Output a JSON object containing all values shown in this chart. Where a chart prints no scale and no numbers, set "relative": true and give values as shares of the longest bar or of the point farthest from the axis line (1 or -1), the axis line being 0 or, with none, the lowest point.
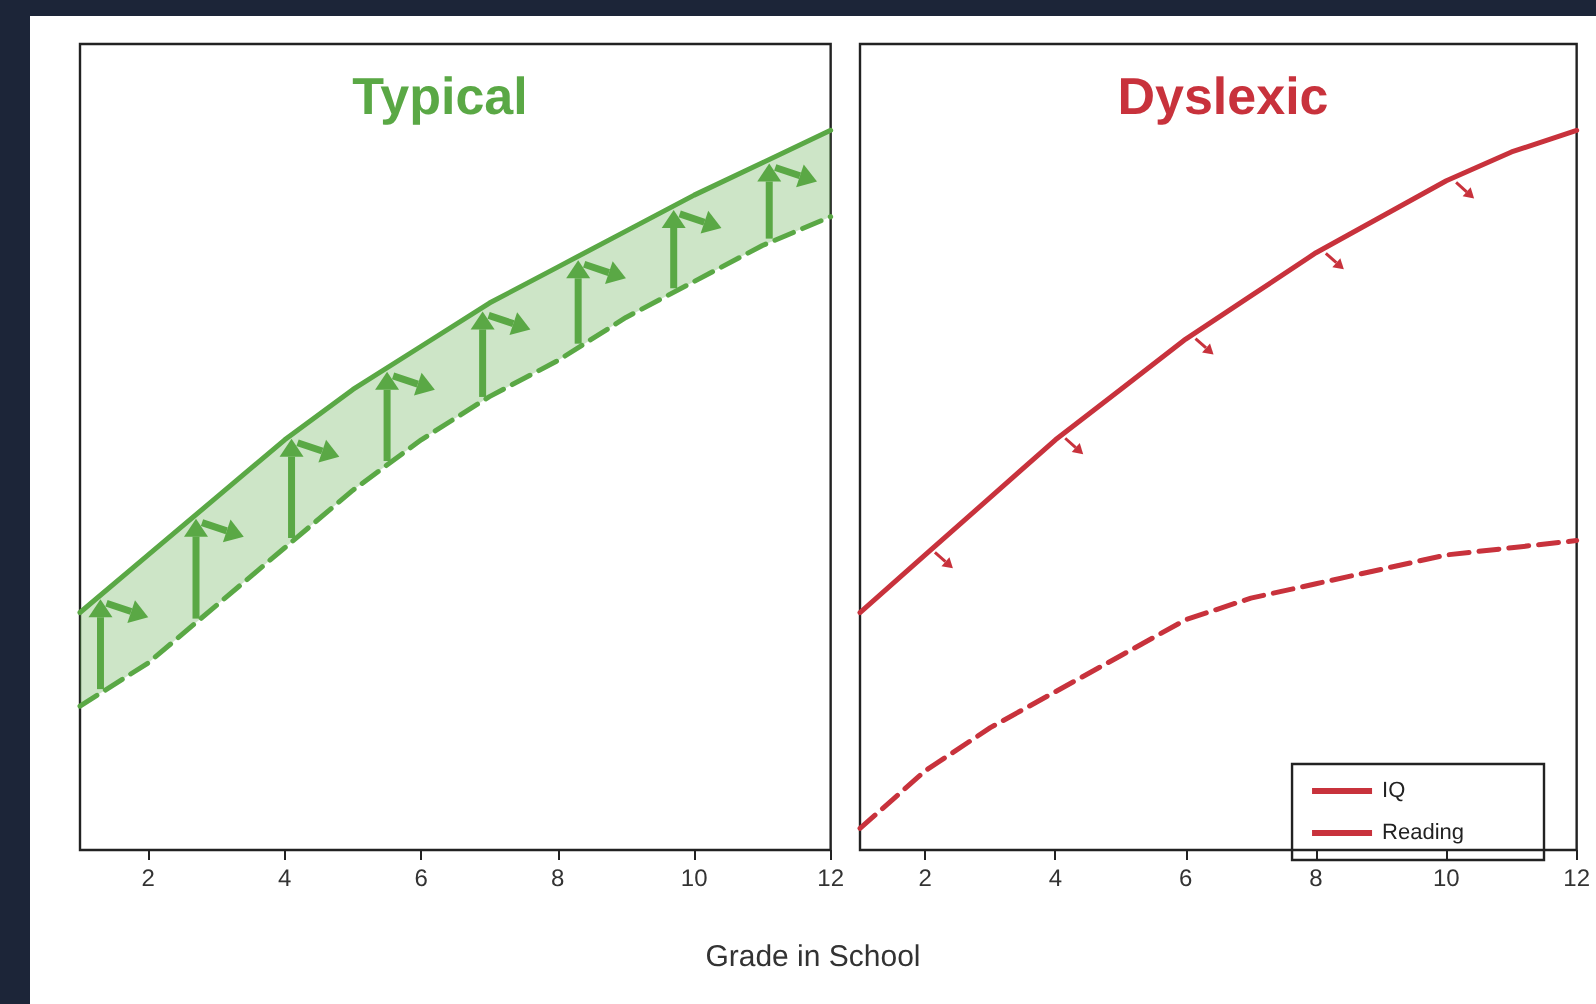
{
  "chart_data": [
    {
      "type": "line",
      "title": "Typical",
      "xlabel": "Grade in School",
      "relative": true,
      "x": [
        1,
        2,
        3,
        4,
        5,
        6,
        7,
        8,
        9,
        10,
        11,
        12
      ],
      "xlim": [
        1,
        12
      ],
      "xticks": [
        2,
        4,
        6,
        8,
        10,
        12
      ],
      "grid": false,
      "legend": false,
      "marker": "none",
      "series": [
        {
          "color": "#5aa845",
          "line_style": "solid",
          "values": [
            0.33,
            0.41,
            0.49,
            0.57,
            0.64,
            0.7,
            0.76,
            0.81,
            0.86,
            0.91,
            0.955,
            1
          ],
          "lower": [
            0.2,
            0.26,
            0.34,
            0.42,
            0.5,
            0.57,
            0.63,
            0.68,
            0.74,
            0.79,
            0.84,
            0.88
          ],
          "upper": [
            0.33,
            0.41,
            0.49,
            0.57,
            0.64,
            0.7,
            0.76,
            0.81,
            0.86,
            0.91,
            0.955,
            1
          ]
        },
        {
          "color": "#5aa845",
          "line_style": "dashed",
          "values": [
            0.2,
            0.26,
            0.34,
            0.42,
            0.5,
            0.57,
            0.63,
            0.68,
            0.74,
            0.79,
            0.84,
            0.88
          ]
        }
      ]
    },
    {
      "type": "line",
      "title": "Dyslexic",
      "relative": true,
      "x": [
        1,
        2,
        3,
        4,
        5,
        6,
        7,
        8,
        9,
        10,
        11,
        12
      ],
      "xlim": [
        1,
        12
      ],
      "xticks": [
        2,
        4,
        6,
        8,
        10,
        12
      ],
      "grid": false,
      "legend": "bottom right",
      "marker": "none",
      "series": [
        {
          "name": "IQ",
          "color": "#c8323c",
          "line_style": "solid",
          "values": [
            0.33,
            0.41,
            0.49,
            0.57,
            0.64,
            0.71,
            0.77,
            0.83,
            0.88,
            0.93,
            0.97,
            1
          ]
        },
        {
          "name": "Reading",
          "color": "#c8323c",
          "line_style": "dashed",
          "values": [
            0.03,
            0.11,
            0.17,
            0.22,
            0.27,
            0.32,
            0.35,
            0.37,
            0.39,
            0.41,
            0.42,
            0.43
          ]
        }
      ]
    }
  ]
}
